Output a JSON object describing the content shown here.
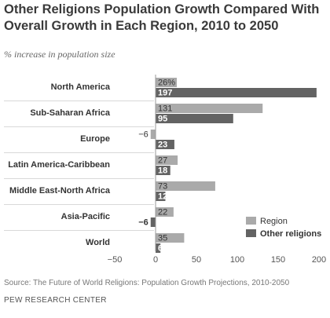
{
  "header": {
    "title": "Other Religions Population Growth Compared With Overall Growth in Each Region, 2010 to 2050",
    "subtitle": "% increase in population size"
  },
  "footer": {
    "source": "Source: The Future of World Religions: Population Growth Projections, 2010-2050",
    "organization": "PEW RESEARCH CENTER"
  },
  "chart_data": {
    "type": "bar",
    "orientation": "horizontal",
    "categories": [
      "North America",
      "Sub-Saharan Africa",
      "Europe",
      "Latin America-Caribbean",
      "Middle East-North Africa",
      "Asia-Pacific",
      "World"
    ],
    "series": [
      {
        "name": "Region",
        "values": [
          26,
          131,
          -6,
          27,
          73,
          22,
          35
        ],
        "labels": [
          "26%",
          "131",
          "-6",
          "27",
          "73",
          "22",
          "35"
        ],
        "color": "#aaaaaa"
      },
      {
        "name": "Other religions",
        "values": [
          197,
          95,
          23,
          18,
          12,
          -6,
          6
        ],
        "labels": [
          "197",
          "95",
          "23",
          "18",
          "12",
          "-6",
          "6"
        ],
        "color": "#636363"
      }
    ],
    "xlim": [
      -50,
      200
    ],
    "xticks": [
      -50,
      0,
      50,
      100,
      150,
      200
    ],
    "xtick_labels": [
      "−50",
      "0",
      "50",
      "100",
      "150",
      "200"
    ],
    "legend_position": "bottom-right",
    "grid": false
  }
}
